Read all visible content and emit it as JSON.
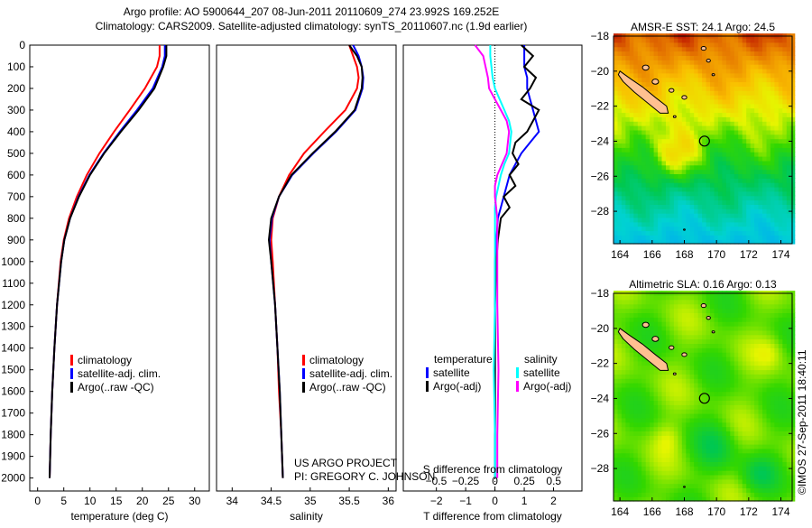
{
  "header": {
    "line1": "Argo profile: AO 5900644_207 08-Jun-2011 20110609_274 23.992S 169.252E",
    "line2": "Climatology: CARS2009. Satellite-adjusted climatology: synTS_20110607.nc (1.9d earlier)"
  },
  "credit": {
    "project": "US ARGO PROJECT",
    "pi": "PI: GREGORY C. JOHNSON",
    "stamp": "©IMOS 27-Sep-2011 18:40:11"
  },
  "colors": {
    "climatology": "#ff0000",
    "satellite": "#0000ff",
    "argo": "#000000",
    "s_satellite": "#00ffff",
    "s_argo": "#ff00ff"
  },
  "chart_data": [
    {
      "type": "line",
      "id": "temperature",
      "xlabel": "temperature (deg C)",
      "ylabel": "",
      "xlim": [
        -1.5,
        32.8
      ],
      "ylim": [
        0,
        2060
      ],
      "yreversed": true,
      "xticks": [
        0,
        5,
        10,
        15,
        20,
        25,
        30
      ],
      "yticks": [
        0,
        100,
        200,
        300,
        400,
        500,
        600,
        700,
        800,
        900,
        1000,
        1100,
        1200,
        1300,
        1400,
        1500,
        1600,
        1700,
        1800,
        1900,
        2000
      ],
      "legend": [
        "climatology",
        "satellite-adj. clim.",
        "Argo(..raw -QC)"
      ],
      "depth": [
        0,
        50,
        100,
        200,
        300,
        400,
        500,
        600,
        700,
        800,
        900,
        1000,
        1200,
        1400,
        1600,
        1800,
        2000
      ],
      "series": [
        {
          "name": "climatology",
          "color": "#ff0000",
          "values": [
            23.3,
            23.3,
            22.8,
            20.5,
            17.6,
            14.6,
            11.8,
            9.4,
            7.5,
            6.0,
            5.0,
            4.4,
            3.7,
            3.2,
            2.8,
            2.5,
            2.3
          ]
        },
        {
          "name": "satellite-adj. clim.",
          "color": "#0000ff",
          "values": [
            24.3,
            24.3,
            23.8,
            22.0,
            19.0,
            15.7,
            12.6,
            9.9,
            7.8,
            6.2,
            5.1,
            4.5,
            3.7,
            3.2,
            2.8,
            2.5,
            2.3
          ]
        },
        {
          "name": "Argo(..raw -QC)",
          "color": "#000000",
          "values": [
            24.6,
            24.6,
            24.0,
            22.3,
            19.3,
            15.9,
            12.7,
            10.0,
            7.9,
            6.2,
            5.1,
            4.5,
            3.7,
            3.2,
            2.8,
            2.5,
            2.3
          ]
        }
      ]
    },
    {
      "type": "line",
      "id": "salinity",
      "xlabel": "salinity",
      "xlim": [
        33.8,
        36.1
      ],
      "ylim": [
        0,
        2060
      ],
      "yreversed": true,
      "xticks": [
        34,
        34.5,
        35,
        35.5,
        36
      ],
      "legend": [
        "climatology",
        "satellite-adj. clim.",
        "Argo(..raw -QC)"
      ],
      "depth": [
        0,
        50,
        100,
        150,
        200,
        300,
        400,
        500,
        600,
        700,
        800,
        900,
        1000,
        1200,
        1400,
        1600,
        1800,
        2000
      ],
      "series": [
        {
          "name": "climatology",
          "color": "#ff0000",
          "values": [
            35.5,
            35.55,
            35.6,
            35.62,
            35.6,
            35.45,
            35.18,
            34.92,
            34.73,
            34.6,
            34.52,
            34.5,
            34.52,
            34.55,
            34.58,
            34.6,
            34.63,
            34.65
          ]
        },
        {
          "name": "satellite-adj. clim.",
          "color": "#0000ff",
          "values": [
            35.55,
            35.62,
            35.66,
            35.68,
            35.67,
            35.58,
            35.33,
            35.04,
            34.77,
            34.6,
            34.51,
            34.48,
            34.5,
            34.55,
            34.58,
            34.61,
            34.63,
            34.65
          ]
        },
        {
          "name": "Argo(..raw -QC)",
          "color": "#000000",
          "values": [
            35.5,
            35.6,
            35.66,
            35.67,
            35.66,
            35.57,
            35.32,
            35.03,
            34.76,
            34.6,
            34.5,
            34.47,
            34.5,
            34.55,
            34.58,
            34.61,
            34.63,
            34.65
          ]
        }
      ]
    },
    {
      "type": "line",
      "id": "difference",
      "xlabel": "T difference from climatology",
      "x2label": "S difference from climatology",
      "xlim": [
        -3.13,
        2.97
      ],
      "x2lim": [
        -0.78,
        0.74
      ],
      "ylim": [
        0,
        2060
      ],
      "yreversed": true,
      "xticks": [
        -2,
        -1,
        0,
        1,
        2
      ],
      "x2ticks": [
        -0.5,
        -0.25,
        0,
        0.25,
        0.5
      ],
      "legend_t": {
        "title": "temperature",
        "items": [
          "satellite",
          "Argo(-adj)"
        ]
      },
      "legend_s": {
        "title": "salinity",
        "items": [
          "satellite",
          "Argo(-adj)"
        ]
      },
      "depth": [
        0,
        50,
        100,
        150,
        200,
        250,
        300,
        350,
        400,
        450,
        500,
        550,
        600,
        650,
        700,
        750,
        800,
        900,
        1000,
        1200,
        1500,
        1800,
        2000
      ],
      "series": [
        {
          "name": "temperature satellite",
          "axis": "T",
          "color": "#0000ff",
          "values": [
            1.0,
            1.0,
            1.0,
            1.1,
            1.1,
            1.2,
            1.3,
            1.4,
            1.5,
            1.2,
            0.9,
            0.7,
            0.5,
            0.4,
            0.3,
            0.2,
            0.1,
            0.05,
            0.0,
            0.0,
            0.0,
            0.0,
            0.0
          ]
        },
        {
          "name": "temperature Argo(-adj)",
          "axis": "T",
          "color": "#000000",
          "values": [
            0.9,
            1.3,
            1.0,
            1.4,
            1.2,
            0.9,
            1.5,
            1.3,
            1.1,
            0.7,
            0.6,
            0.8,
            0.5,
            0.7,
            0.3,
            0.5,
            0.2,
            0.1,
            0.05,
            0.0,
            0.0,
            0.0,
            0.0
          ]
        },
        {
          "name": "salinity satellite",
          "axis": "S",
          "color": "#00ffff",
          "values": [
            -0.04,
            -0.04,
            -0.03,
            -0.02,
            0.0,
            0.04,
            0.08,
            0.12,
            0.14,
            0.13,
            0.12,
            0.08,
            0.05,
            0.03,
            0.01,
            0.0,
            0.0,
            0.0,
            0.0,
            0.0,
            -0.01,
            0.0,
            0.0
          ]
        },
        {
          "name": "salinity Argo(-adj)",
          "axis": "S",
          "color": "#ff00ff",
          "values": [
            -0.17,
            -0.1,
            -0.08,
            -0.06,
            -0.05,
            0.0,
            0.05,
            0.1,
            0.12,
            0.11,
            0.1,
            0.06,
            0.02,
            0.0,
            0.0,
            0.01,
            0.02,
            0.02,
            0.02,
            0.02,
            0.03,
            0.02,
            0.02
          ]
        }
      ]
    },
    {
      "type": "heatmap",
      "id": "sst-map",
      "title": "AMSR-E SST: 24.1 Argo: 24.5",
      "xlim": [
        163.6,
        174.7
      ],
      "ylim": [
        -29.85,
        -18
      ],
      "xticks": [
        164,
        166,
        168,
        170,
        172,
        174
      ],
      "yticks": [
        -18,
        -20,
        -22,
        -24,
        -26,
        -28
      ],
      "float_position": {
        "lon": 169.252,
        "lat": -23.992
      }
    },
    {
      "type": "heatmap",
      "id": "sla-map",
      "title": "Altimetric SLA: 0.16 Argo: 0.13",
      "xlim": [
        163.6,
        174.7
      ],
      "ylim": [
        -29.85,
        -18
      ],
      "xticks": [
        164,
        166,
        168,
        170,
        172,
        174
      ],
      "yticks": [
        -18,
        -20,
        -22,
        -24,
        -26,
        -28
      ],
      "float_position": {
        "lon": 169.252,
        "lat": -23.992
      }
    }
  ]
}
